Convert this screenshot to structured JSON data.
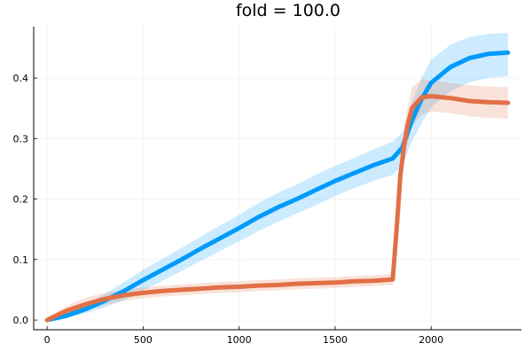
{
  "chart_data": {
    "type": "line",
    "title": "fold = 100.0",
    "xlabel": "",
    "ylabel": "",
    "xlim": [
      -70,
      2470
    ],
    "ylim": [
      -0.016,
      0.485
    ],
    "grid": true,
    "legend": "none",
    "x_ticks": [
      {
        "value": 0,
        "label": "0"
      },
      {
        "value": 500,
        "label": "500"
      },
      {
        "value": 1000,
        "label": "1000"
      },
      {
        "value": 1500,
        "label": "1500"
      },
      {
        "value": 2000,
        "label": "2000"
      }
    ],
    "y_ticks": [
      {
        "value": 0.0,
        "label": "0.0"
      },
      {
        "value": 0.1,
        "label": "0.1"
      },
      {
        "value": 0.2,
        "label": "0.2"
      },
      {
        "value": 0.3,
        "label": "0.3"
      },
      {
        "value": 0.4,
        "label": "0.4"
      }
    ],
    "series": [
      {
        "color": "#009af9",
        "band_color": "#009af9",
        "x": [
          0,
          100,
          200,
          300,
          400,
          500,
          600,
          700,
          800,
          900,
          1000,
          1100,
          1200,
          1300,
          1400,
          1500,
          1600,
          1700,
          1800,
          1850,
          1900,
          1950,
          2000,
          2100,
          2200,
          2300,
          2400
        ],
        "y": [
          0.0,
          0.007,
          0.018,
          0.032,
          0.048,
          0.066,
          0.083,
          0.1,
          0.118,
          0.135,
          0.152,
          0.17,
          0.186,
          0.2,
          0.215,
          0.23,
          0.243,
          0.256,
          0.267,
          0.285,
          0.33,
          0.365,
          0.392,
          0.418,
          0.433,
          0.44,
          0.442
        ],
        "lower": [
          0.0,
          0.004,
          0.011,
          0.021,
          0.033,
          0.049,
          0.065,
          0.081,
          0.098,
          0.114,
          0.13,
          0.147,
          0.162,
          0.176,
          0.19,
          0.205,
          0.218,
          0.23,
          0.24,
          0.255,
          0.295,
          0.325,
          0.352,
          0.378,
          0.393,
          0.4,
          0.403
        ],
        "upper": [
          0.0,
          0.01,
          0.026,
          0.043,
          0.063,
          0.083,
          0.101,
          0.119,
          0.138,
          0.156,
          0.174,
          0.193,
          0.21,
          0.224,
          0.24,
          0.255,
          0.268,
          0.282,
          0.295,
          0.31,
          0.36,
          0.4,
          0.43,
          0.455,
          0.468,
          0.473,
          0.475
        ]
      },
      {
        "color": "#e26f46",
        "band_color": "#e26f46",
        "x": [
          0,
          50,
          100,
          200,
          300,
          400,
          500,
          600,
          700,
          800,
          900,
          1000,
          1100,
          1200,
          1300,
          1400,
          1500,
          1600,
          1700,
          1800,
          1820,
          1840,
          1860,
          1880,
          1900,
          1950,
          2000,
          2100,
          2200,
          2300,
          2400
        ],
        "y": [
          0.0,
          0.008,
          0.015,
          0.026,
          0.035,
          0.041,
          0.045,
          0.048,
          0.05,
          0.052,
          0.054,
          0.055,
          0.057,
          0.058,
          0.06,
          0.061,
          0.062,
          0.064,
          0.065,
          0.067,
          0.15,
          0.24,
          0.29,
          0.325,
          0.35,
          0.368,
          0.37,
          0.367,
          0.362,
          0.36,
          0.359
        ],
        "lower": [
          0.0,
          0.003,
          0.007,
          0.015,
          0.025,
          0.032,
          0.036,
          0.039,
          0.041,
          0.043,
          0.045,
          0.046,
          0.048,
          0.049,
          0.051,
          0.052,
          0.053,
          0.055,
          0.056,
          0.058,
          0.13,
          0.21,
          0.26,
          0.295,
          0.32,
          0.34,
          0.345,
          0.342,
          0.337,
          0.334,
          0.333
        ],
        "upper": [
          0.0,
          0.013,
          0.023,
          0.037,
          0.045,
          0.05,
          0.054,
          0.057,
          0.059,
          0.061,
          0.063,
          0.064,
          0.066,
          0.067,
          0.069,
          0.07,
          0.071,
          0.073,
          0.074,
          0.076,
          0.17,
          0.27,
          0.32,
          0.355,
          0.385,
          0.398,
          0.396,
          0.392,
          0.388,
          0.386,
          0.385
        ]
      }
    ]
  }
}
